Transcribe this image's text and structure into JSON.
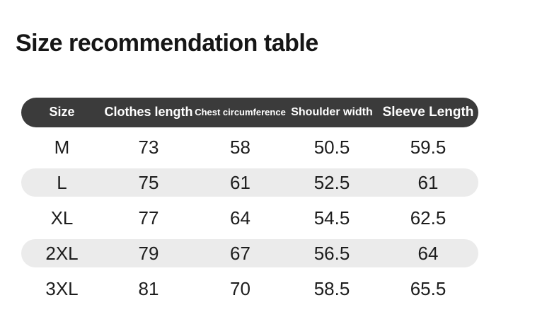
{
  "page": {
    "title": "Size recommendation table"
  },
  "colors": {
    "header_bg": "#3b3b3b",
    "header_text": "#ffffff",
    "alt_row_bg": "#ebebeb",
    "body_text": "#1d1d1d",
    "title_text": "#161616",
    "background": "#ffffff"
  },
  "chart_data": {
    "type": "table",
    "title": "Size recommendation table",
    "columns": [
      "Size",
      "Clothes length",
      "Chest circumference",
      "Shoulder width",
      "Sleeve Length"
    ],
    "rows": [
      [
        "M",
        73,
        58,
        50.5,
        59.5
      ],
      [
        "L",
        75,
        61,
        52.5,
        61
      ],
      [
        "XL",
        77,
        64,
        54.5,
        62.5
      ],
      [
        "2XL",
        79,
        67,
        56.5,
        64
      ],
      [
        "3XL",
        81,
        70,
        58.5,
        65.5
      ]
    ],
    "layout": {
      "header_style": "dark pill bar, white bold text",
      "row_striping": "odd rows white, even rows light-gray pill",
      "alignment": "all cells centered"
    }
  }
}
